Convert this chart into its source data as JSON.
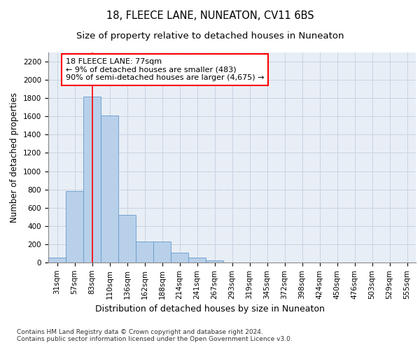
{
  "title": "18, FLEECE LANE, NUNEATON, CV11 6BS",
  "subtitle": "Size of property relative to detached houses in Nuneaton",
  "xlabel": "Distribution of detached houses by size in Nuneaton",
  "ylabel": "Number of detached properties",
  "bar_labels": [
    "31sqm",
    "57sqm",
    "83sqm",
    "110sqm",
    "136sqm",
    "162sqm",
    "188sqm",
    "214sqm",
    "241sqm",
    "267sqm",
    "293sqm",
    "319sqm",
    "345sqm",
    "372sqm",
    "398sqm",
    "424sqm",
    "450sqm",
    "476sqm",
    "503sqm",
    "529sqm",
    "555sqm"
  ],
  "bar_values": [
    50,
    780,
    1820,
    1610,
    520,
    230,
    230,
    105,
    55,
    25,
    0,
    0,
    0,
    0,
    0,
    0,
    0,
    0,
    0,
    0,
    0
  ],
  "bar_color": "#b8d0ea",
  "bar_edge_color": "#6699cc",
  "grid_color": "#c8d4e3",
  "bg_color": "#e8eef5",
  "vline_x": 2,
  "vline_color": "red",
  "annotation_text": "18 FLEECE LANE: 77sqm\n← 9% of detached houses are smaller (483)\n90% of semi-detached houses are larger (4,675) →",
  "annotation_box_color": "white",
  "annotation_box_edge_color": "red",
  "ylim": [
    0,
    2300
  ],
  "yticks": [
    0,
    200,
    400,
    600,
    800,
    1000,
    1200,
    1400,
    1600,
    1800,
    2000,
    2200
  ],
  "footnote": "Contains HM Land Registry data © Crown copyright and database right 2024.\nContains public sector information licensed under the Open Government Licence v3.0.",
  "title_fontsize": 10.5,
  "subtitle_fontsize": 9.5,
  "xlabel_fontsize": 9,
  "ylabel_fontsize": 8.5,
  "tick_fontsize": 7.5,
  "annotation_fontsize": 8,
  "footnote_fontsize": 6.5
}
